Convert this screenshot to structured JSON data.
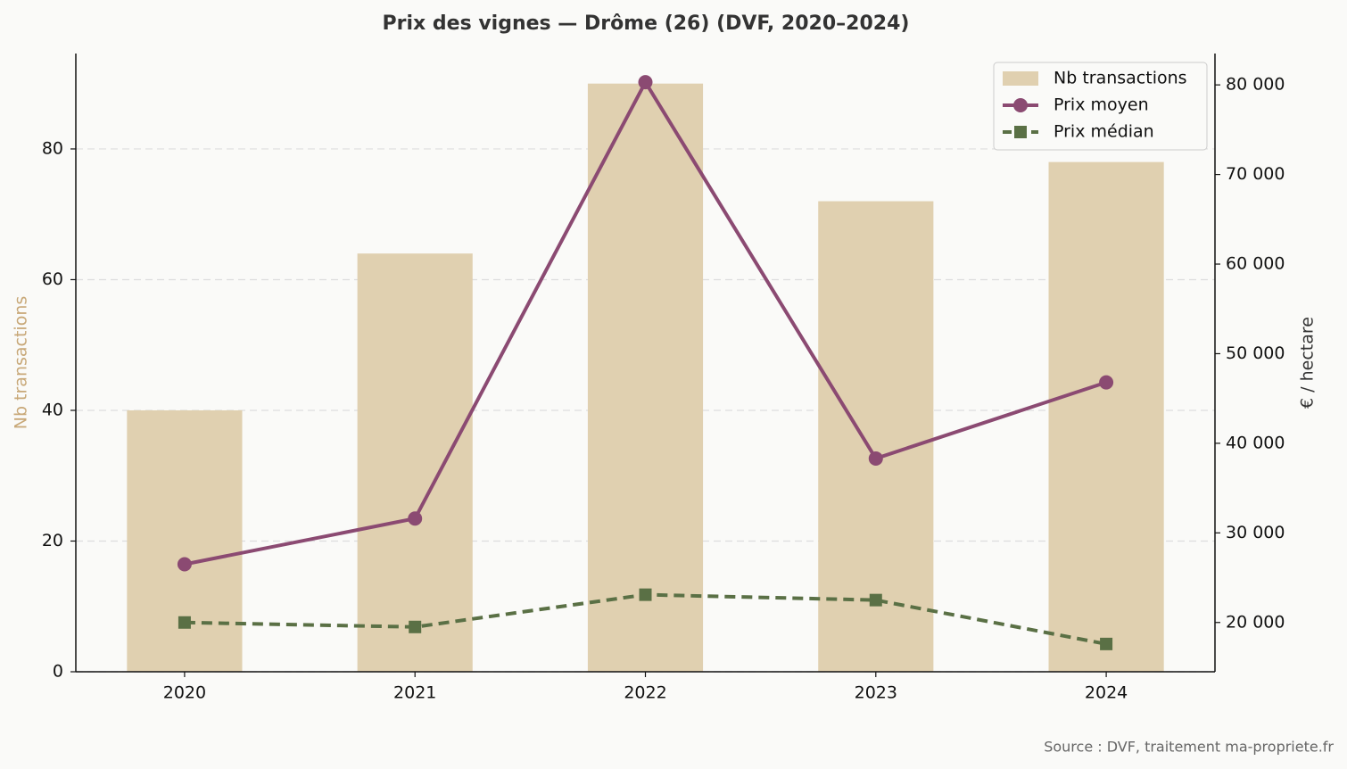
{
  "chart_data": {
    "type": "bar",
    "title": "Prix des vignes — Drôme (26) (DVF, 2020–2024)",
    "categories": [
      "2020",
      "2021",
      "2022",
      "2023",
      "2024"
    ],
    "series": [
      {
        "name": "Nb transactions",
        "type": "bar",
        "color": "#e0d0b0",
        "values": [
          40,
          64,
          90,
          72,
          78
        ]
      },
      {
        "name": "Prix moyen",
        "type": "line",
        "axis": "y2",
        "color": "#8b4a72",
        "marker": "circle",
        "linestyle": "solid",
        "values": [
          26500,
          31600,
          80300,
          38300,
          46800
        ]
      },
      {
        "name": "Prix médian",
        "type": "line",
        "axis": "y2",
        "color": "#5a7045",
        "marker": "square",
        "linestyle": "dashed",
        "values": [
          20000,
          19500,
          23100,
          22500,
          17600
        ]
      }
    ],
    "ylabel": "Nb transactions",
    "ylabel_color": "#c8a878",
    "y2label": "€ / hectare",
    "ylim": [
      0,
      94.6
    ],
    "yticks": [
      0,
      20,
      40,
      60,
      80
    ],
    "y2lim": [
      14500,
      83500
    ],
    "y2ticks": [
      {
        "value": 20000,
        "label": "20 000"
      },
      {
        "value": 30000,
        "label": "30 000"
      },
      {
        "value": 40000,
        "label": "40 000"
      },
      {
        "value": 50000,
        "label": "50 000"
      },
      {
        "value": 60000,
        "label": "60 000"
      },
      {
        "value": 70000,
        "label": "70 000"
      },
      {
        "value": 80000,
        "label": "80 000"
      }
    ],
    "grid": true,
    "legend": "upper right",
    "source": "Source : DVF, traitement ma-propriete.fr"
  }
}
